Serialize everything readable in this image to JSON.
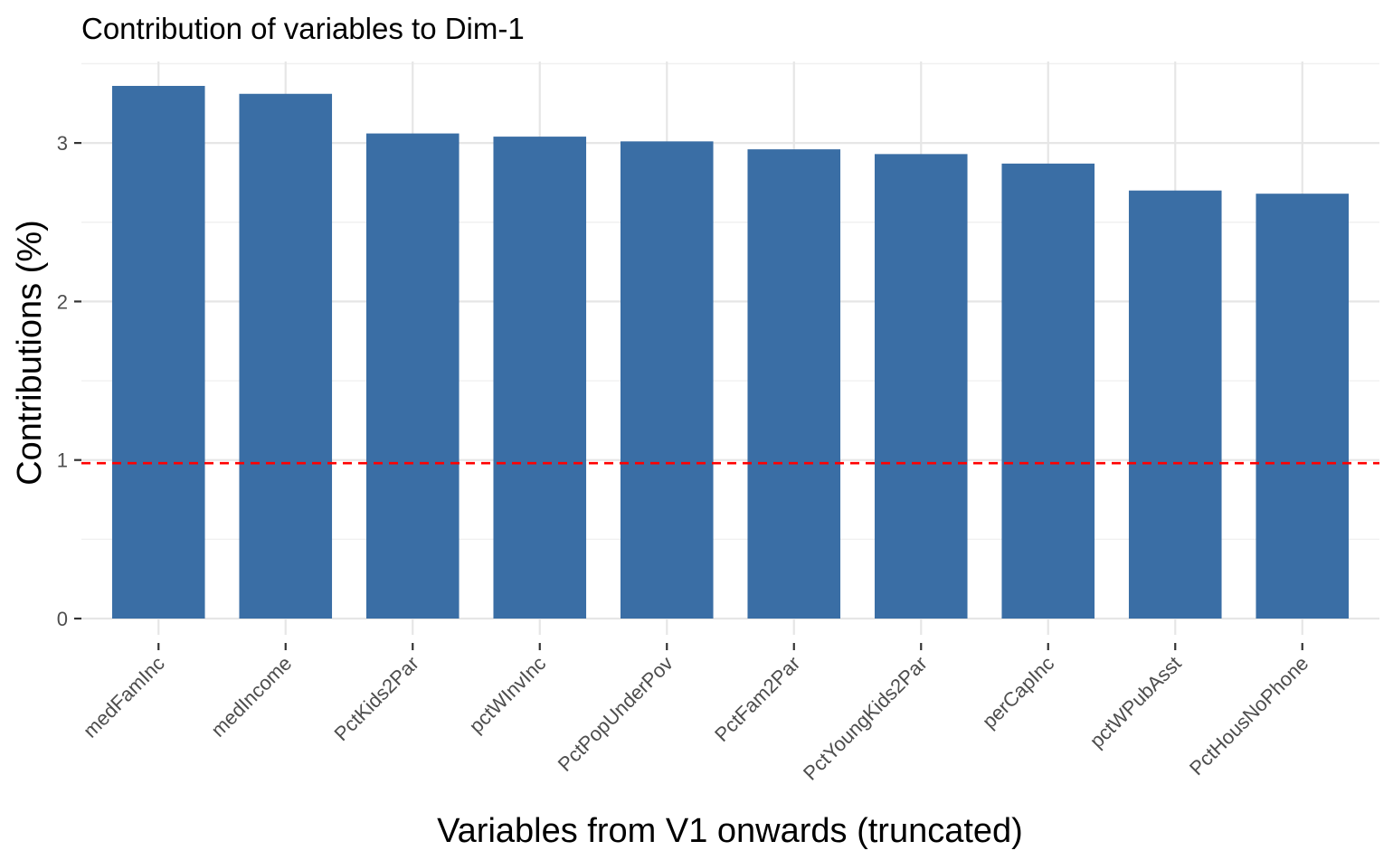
{
  "chart_data": {
    "type": "bar",
    "title": "Contribution of variables to Dim-1",
    "xlabel": "Variables from V1 onwards (truncated)",
    "ylabel": "Contributions (%)",
    "categories": [
      "medFamInc",
      "medIncome",
      "PctKids2Par",
      "pctWInvInc",
      "PctPopUnderPov",
      "PctFam2Par",
      "PctYoungKids2Par",
      "perCapInc",
      "pctWPubAsst",
      "PctHousNoPhone"
    ],
    "values": [
      3.36,
      3.31,
      3.06,
      3.04,
      3.01,
      2.96,
      2.93,
      2.87,
      2.7,
      2.68
    ],
    "ylim": [
      0,
      3.5
    ],
    "yticks": [
      "0",
      "1",
      "2",
      "3"
    ],
    "reference_line": {
      "value": 0.98,
      "color": "#ff0000",
      "style": "dashed"
    },
    "bar_color": "#3a6ea5",
    "grid": true,
    "legend": "none"
  }
}
